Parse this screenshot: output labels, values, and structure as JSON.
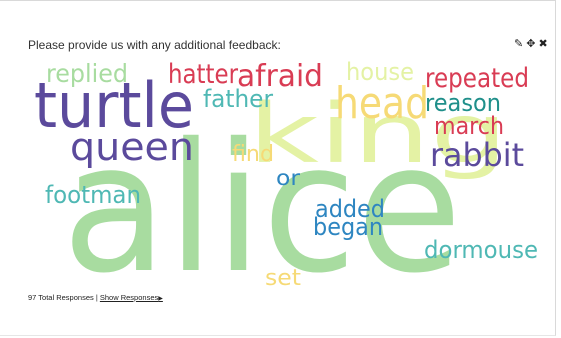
{
  "question": "Please provide us with any additional feedback:",
  "tools": {
    "edit_icon": "✎",
    "move_icon": "✥",
    "close_icon": "✖"
  },
  "word_cloud": [
    {
      "word": "alice",
      "color": "#a8dca0"
    },
    {
      "word": "king",
      "color": "#e4f2a4"
    },
    {
      "word": "turtle",
      "color": "#5b4a9c"
    },
    {
      "word": "queen",
      "color": "#5b4a9c"
    },
    {
      "word": "head",
      "color": "#f6da76"
    },
    {
      "word": "afraid",
      "color": "#d93c54"
    },
    {
      "word": "hatter",
      "color": "#d93c54"
    },
    {
      "word": "replied",
      "color": "#a8dca0"
    },
    {
      "word": "house",
      "color": "#e4f2a4"
    },
    {
      "word": "repeated",
      "color": "#d93c54"
    },
    {
      "word": "reason",
      "color": "#1f8f8a"
    },
    {
      "word": "father",
      "color": "#4fb8b4"
    },
    {
      "word": "march",
      "color": "#d93c54"
    },
    {
      "word": "rabbit",
      "color": "#5b4a9c"
    },
    {
      "word": "find",
      "color": "#f6da76"
    },
    {
      "word": "or",
      "color": "#2e86c1"
    },
    {
      "word": "footman",
      "color": "#4fb8b4"
    },
    {
      "word": "added",
      "color": "#2e86c1"
    },
    {
      "word": "began",
      "color": "#2e86c1"
    },
    {
      "word": "dormouse",
      "color": "#4fb8b4"
    },
    {
      "word": "set",
      "color": "#f6da76"
    }
  ],
  "footer": {
    "total": "97 Total Responses |",
    "show_label": "Show Responses",
    "arrow": "▶"
  }
}
